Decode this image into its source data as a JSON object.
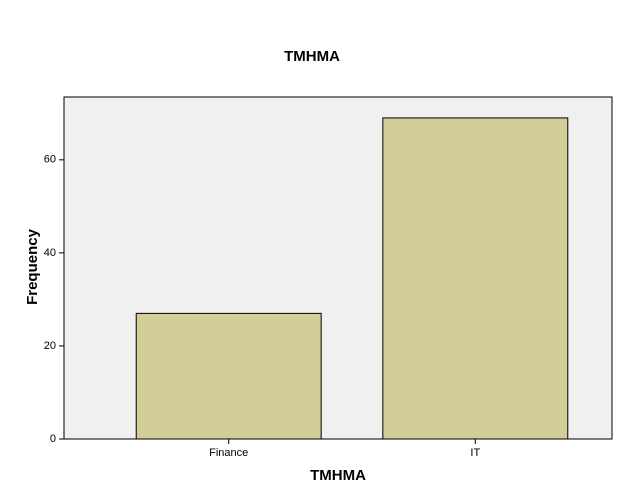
{
  "chart_data": {
    "type": "bar",
    "title": "TMHMA",
    "x_label": "TMHMA",
    "y_label": "Frequency",
    "categories": [
      "Finance",
      "IT"
    ],
    "values": [
      27,
      69
    ],
    "color": "#d3ce97",
    "ylim": [
      0,
      73.5
    ],
    "yticks": [
      0,
      20,
      40,
      60
    ],
    "grid": false
  }
}
